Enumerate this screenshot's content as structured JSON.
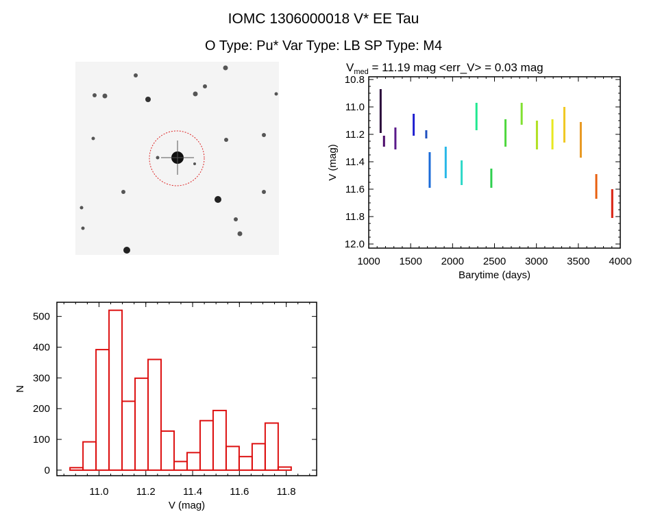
{
  "header": {
    "title": "IOMC 1306000018    V* EE Tau",
    "subtitle": "O Type: Pu*   Var Type: LB   SP Type: M4"
  },
  "image_panel": {
    "description_visible": false
  },
  "chart_data": [
    {
      "type": "scatter",
      "title_main": "V",
      "title_sub": "med",
      "title_rest": " = 11.19 mag <err_V> = 0.03 mag",
      "xlabel": "Barytime (days)",
      "ylabel": "V (mag)",
      "xlim": [
        1000,
        4000
      ],
      "ylim": [
        10.78,
        12.03
      ],
      "y_inverted": true,
      "xticks": [
        1000,
        1500,
        2000,
        2500,
        3000,
        3500,
        4000
      ],
      "yticks": [
        "10.8",
        "11.0",
        "11.2",
        "11.4",
        "11.6",
        "11.8",
        "12.0"
      ],
      "ytick_values": [
        10.8,
        11.0,
        11.2,
        11.4,
        11.6,
        11.8,
        12.0
      ],
      "segments": [
        {
          "x": 1142,
          "ymin": 10.87,
          "ymax": 11.19,
          "color": "#2a0a3a"
        },
        {
          "x": 1182,
          "ymin": 11.21,
          "ymax": 11.29,
          "color": "#4b0a6a"
        },
        {
          "x": 1318,
          "ymin": 11.15,
          "ymax": 11.31,
          "color": "#5a1a8a"
        },
        {
          "x": 1536,
          "ymin": 11.05,
          "ymax": 11.21,
          "color": "#2020d0"
        },
        {
          "x": 1686,
          "ymin": 11.17,
          "ymax": 11.23,
          "color": "#2050c0"
        },
        {
          "x": 1727,
          "ymin": 11.33,
          "ymax": 11.59,
          "color": "#1a6ad8"
        },
        {
          "x": 1918,
          "ymin": 11.29,
          "ymax": 11.52,
          "color": "#28b8e8"
        },
        {
          "x": 2108,
          "ymin": 11.39,
          "ymax": 11.57,
          "color": "#30d8c8"
        },
        {
          "x": 2285,
          "ymin": 10.97,
          "ymax": 11.17,
          "color": "#20e890"
        },
        {
          "x": 2462,
          "ymin": 11.45,
          "ymax": 11.59,
          "color": "#30d050"
        },
        {
          "x": 2631,
          "ymin": 11.09,
          "ymax": 11.29,
          "color": "#50d840"
        },
        {
          "x": 2824,
          "ymin": 10.97,
          "ymax": 11.13,
          "color": "#80e030"
        },
        {
          "x": 3006,
          "ymin": 11.1,
          "ymax": 11.31,
          "color": "#b0e020"
        },
        {
          "x": 3191,
          "ymin": 11.09,
          "ymax": 11.31,
          "color": "#e8e820"
        },
        {
          "x": 3333,
          "ymin": 11.0,
          "ymax": 11.26,
          "color": "#f0c820"
        },
        {
          "x": 3529,
          "ymin": 11.11,
          "ymax": 11.37,
          "color": "#e89820"
        },
        {
          "x": 3714,
          "ymin": 11.49,
          "ymax": 11.67,
          "color": "#e86010"
        },
        {
          "x": 3904,
          "ymin": 11.6,
          "ymax": 11.81,
          "color": "#d82010"
        }
      ]
    },
    {
      "type": "bar",
      "xlabel": "V (mag)",
      "ylabel": "N",
      "xlim": [
        10.82,
        11.93
      ],
      "ylim": [
        -18,
        546
      ],
      "xticks": [
        "11.0",
        "11.2",
        "11.4",
        "11.6",
        "11.8"
      ],
      "xtick_values": [
        11.0,
        11.2,
        11.4,
        11.6,
        11.8
      ],
      "yticks": [
        "0",
        "100",
        "200",
        "300",
        "400",
        "500"
      ],
      "ytick_values": [
        0,
        100,
        200,
        300,
        400,
        500
      ],
      "bin_start": 10.876,
      "bin_width": 0.0556,
      "values": [
        8,
        92,
        392,
        520,
        224,
        299,
        360,
        127,
        28,
        57,
        161,
        194,
        77,
        44,
        86,
        153,
        10
      ],
      "color": "#dd1111"
    }
  ]
}
